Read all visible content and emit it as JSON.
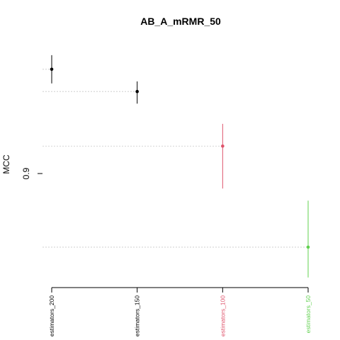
{
  "chart_data": {
    "type": "scatter",
    "title": "AB_A_mRMR_50",
    "xlabel": "",
    "ylabel": "MCC",
    "y_tick_label": "0.9",
    "grid": "horizontal dotted reference line at each point",
    "categories": [
      "estimators_200",
      "estimators_150",
      "estimators_100",
      "estimators_50"
    ],
    "category_colors": [
      "#000000",
      "#000000",
      "#DF536B",
      "#61D04F"
    ],
    "points": [
      {
        "category": "estimators_200",
        "mean": 0.918,
        "lower": 0.911,
        "upper": 0.925,
        "color": "#000000"
      },
      {
        "category": "estimators_150",
        "mean": 0.907,
        "lower": 0.901,
        "upper": 0.912,
        "color": "#000000"
      },
      {
        "category": "estimators_100",
        "mean": 0.88,
        "lower": 0.859,
        "upper": 0.891,
        "color": "#DF536B"
      },
      {
        "category": "estimators_50",
        "mean": 0.83,
        "lower": 0.815,
        "upper": 0.853,
        "color": "#61D04F"
      }
    ],
    "ylim": [
      0.81,
      0.933
    ]
  }
}
